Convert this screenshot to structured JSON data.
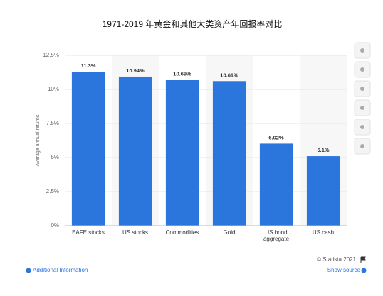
{
  "chart_data": {
    "type": "bar",
    "title": "1971-2019 年黄金和其他大类资产年回报率对比",
    "y_label": "Average annual returns",
    "categories": [
      "EAFE stocks",
      "US stocks",
      "Commodities",
      "Gold",
      "US bond aggregate",
      "US cash"
    ],
    "values": [
      11.3,
      10.94,
      10.69,
      10.61,
      6.02,
      5.1
    ],
    "value_labels": [
      "11.3%",
      "10.94%",
      "10.69%",
      "10.61%",
      "6.02%",
      "5.1%"
    ],
    "color": "#2a76dd",
    "ylim": [
      0,
      12.5
    ],
    "yticks": [
      {
        "value": 0,
        "label": "0%"
      },
      {
        "value": 2.5,
        "label": "2.5%"
      },
      {
        "value": 5,
        "label": "5%"
      },
      {
        "value": 7.5,
        "label": "7.5%"
      },
      {
        "value": 10,
        "label": "10%"
      },
      {
        "value": 12.5,
        "label": "12.5%"
      }
    ],
    "grid": true,
    "copyright": "© Statista 2021",
    "additional_info": "Additional Information",
    "show_source": "Show source"
  }
}
